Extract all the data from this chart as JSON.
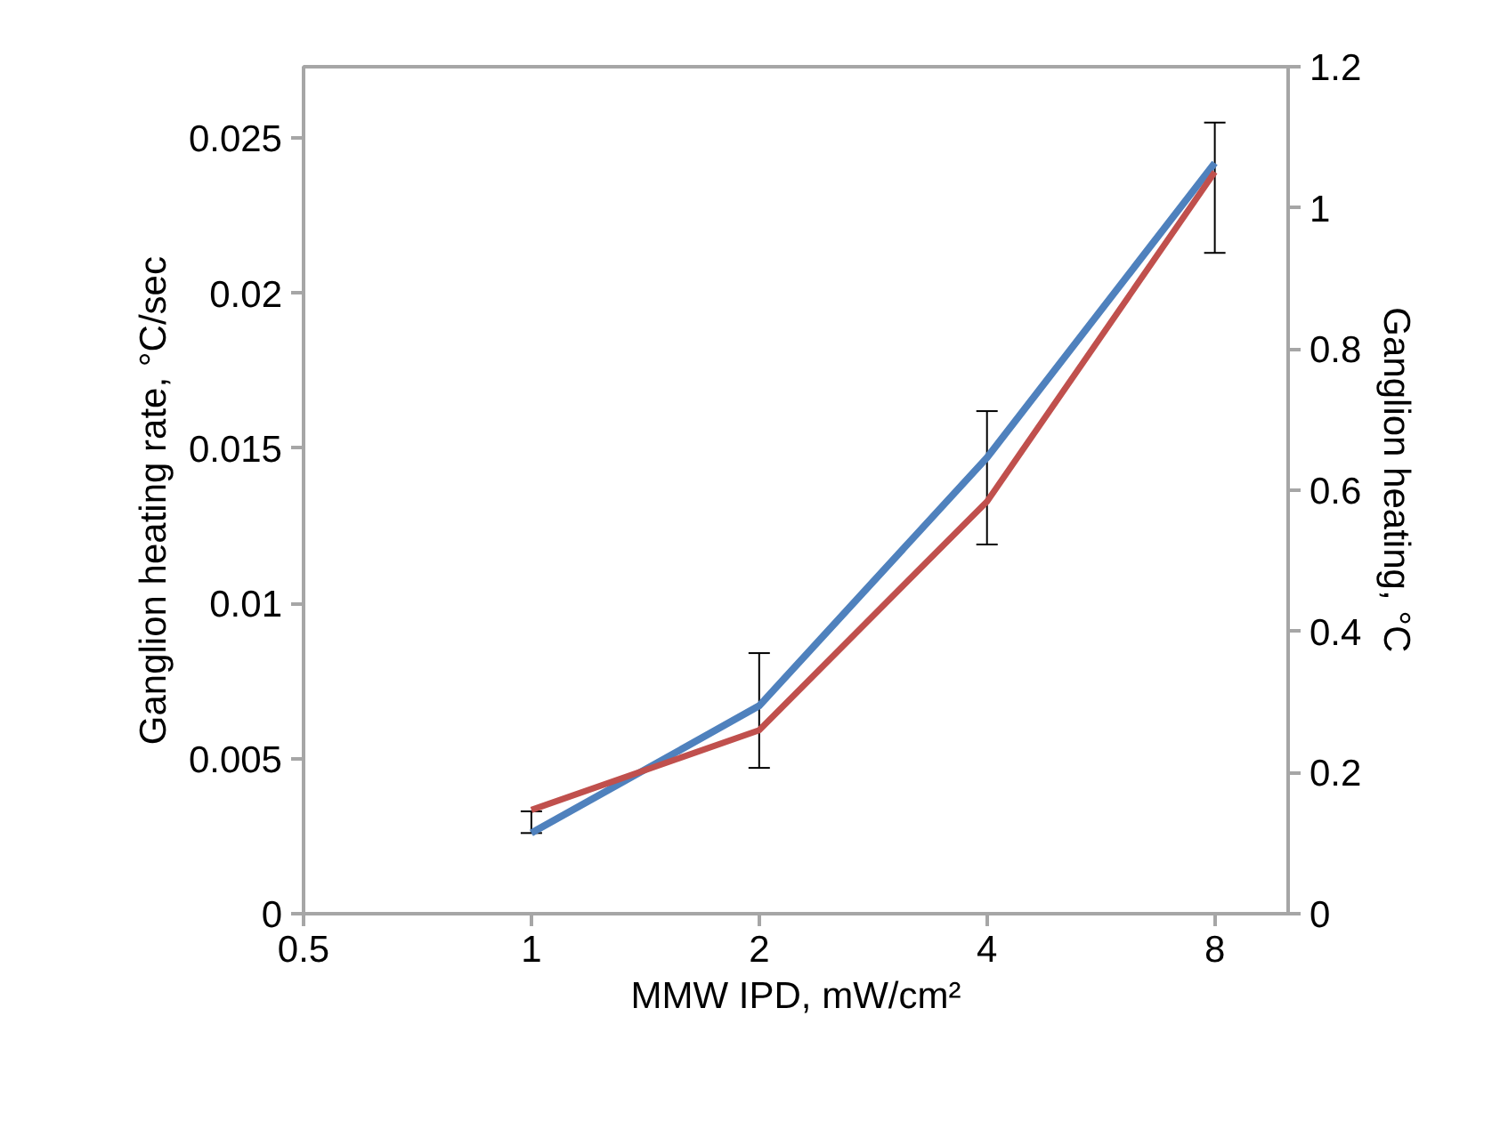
{
  "chart_data": {
    "type": "line",
    "xlabel": "MMW IPD, mW/cm²",
    "ylabel": "Ganglion  heating rate,  °C/sec",
    "y2label": "Ganglion  heating,  °C",
    "x": [
      1,
      2,
      4,
      8
    ],
    "series": [
      {
        "color": "#4f81bd",
        "values": [
          0.0026,
          0.0067,
          0.0147,
          0.0242
        ],
        "errors": [
          [
            0.0026,
            0.0033
          ],
          [
            0.0047,
            0.0084
          ],
          [
            0.0119,
            0.0162
          ],
          [
            0.0213,
            0.0255
          ]
        ]
      },
      {
        "color": "#c0504d",
        "values": [
          0.147,
          0.26,
          0.584,
          1.051
        ],
        "axis": "y2"
      }
    ],
    "log": "x",
    "xlim": [
      0.5,
      10
    ],
    "xticks": [
      0.5,
      1,
      2,
      4,
      8
    ],
    "ylim": [
      0,
      0.0273
    ],
    "yticks": [
      0,
      0.005,
      0.01,
      0.015,
      0.02,
      0.025
    ],
    "y2lim": [
      0,
      1.2
    ],
    "y2ticks": [
      0,
      0.2,
      0.4,
      0.6,
      0.8,
      1,
      1.2
    ],
    "grid": false,
    "marker": "none",
    "line_style": "solid"
  }
}
